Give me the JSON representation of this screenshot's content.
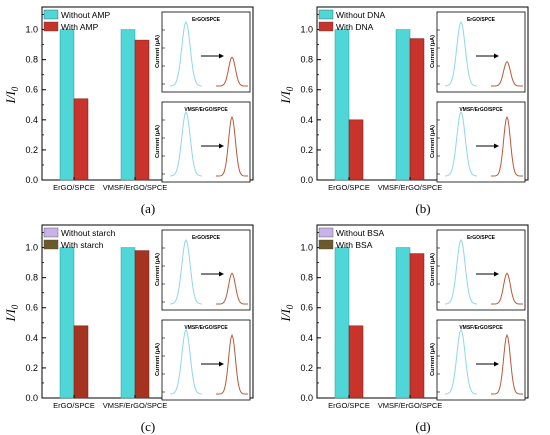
{
  "ylabel": "I/I",
  "ylabel_sub": "0",
  "inset_ylabel": "Current (μA)",
  "categories": [
    "ErGO/SPCE",
    "VMSF/ErGO/SPCE"
  ],
  "ytick_labels": [
    "0.0",
    "0.2",
    "0.4",
    "0.6",
    "0.8",
    "1.0"
  ],
  "inset_titles": [
    "ErGO/SPCE",
    "VMSF/ErGO/SPCE"
  ],
  "colors": {
    "without": "#4fd6d6",
    "with_ad": "#c8332c",
    "with_c": "#a43420",
    "without_cd_light": "#c6b3e8",
    "without_cd_dark": "#3fc2c2",
    "curve_before": "#8fd7ea",
    "curve_after": "#b8583a"
  },
  "chart_data": [
    {
      "type": "bar",
      "panel": "(a)",
      "categories": [
        "ErGO/SPCE",
        "VMSF/ErGO/SPCE"
      ],
      "ylim": [
        0,
        1.15
      ],
      "series": [
        {
          "name": "Without AMP",
          "values": [
            1.0,
            1.0
          ]
        },
        {
          "name": "With AMP",
          "values": [
            0.54,
            0.93
          ]
        }
      ],
      "ylabel": "I/I0",
      "legend": "top-left"
    },
    {
      "type": "bar",
      "panel": "(b)",
      "categories": [
        "ErGO/SPCE",
        "VMSF/ErGO/SPCE"
      ],
      "ylim": [
        0,
        1.15
      ],
      "series": [
        {
          "name": "Without DNA",
          "values": [
            1.0,
            1.0
          ]
        },
        {
          "name": "With DNA",
          "values": [
            0.4,
            0.94
          ]
        }
      ],
      "ylabel": "I/I0",
      "legend": "top-left"
    },
    {
      "type": "bar",
      "panel": "(c)",
      "categories": [
        "ErGO/SPCE",
        "VMSF/ErGO/SPCE"
      ],
      "ylim": [
        0,
        1.15
      ],
      "series": [
        {
          "name": "Without starch",
          "values": [
            1.0,
            1.0
          ]
        },
        {
          "name": "With starch",
          "values": [
            0.48,
            0.98
          ]
        }
      ],
      "ylabel": "I/I0",
      "legend": "top-left"
    },
    {
      "type": "bar",
      "panel": "(d)",
      "categories": [
        "ErGO/SPCE",
        "VMSF/ErGO/SPCE"
      ],
      "ylim": [
        0,
        1.15
      ],
      "series": [
        {
          "name": "Without BSA",
          "values": [
            1.0,
            1.0
          ]
        },
        {
          "name": "With BSA",
          "values": [
            0.48,
            0.96
          ]
        }
      ],
      "ylabel": "I/I0",
      "legend": "top-left"
    }
  ]
}
